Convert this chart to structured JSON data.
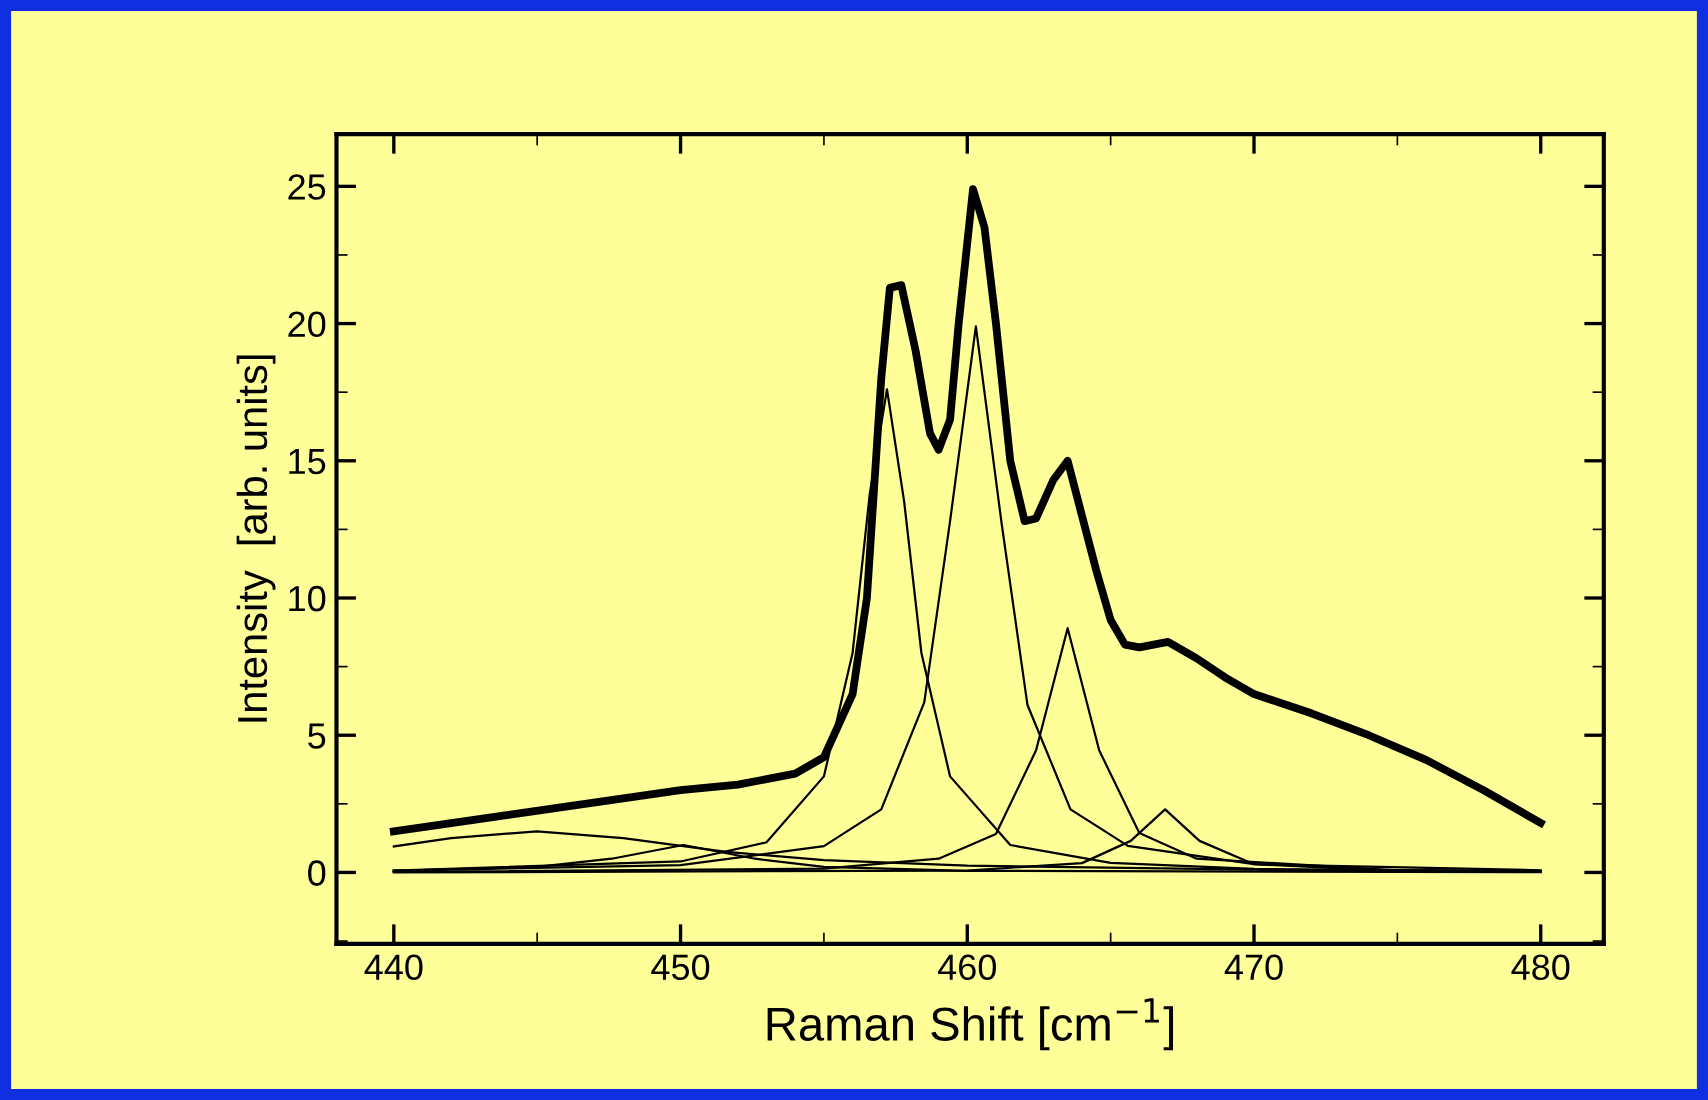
{
  "chart_data": {
    "type": "line",
    "xlabel": "Raman Shift [cm$^{−1}$]",
    "ylabel": "Intensity  [arb. units]",
    "xlim": [
      438,
      482.2
    ],
    "ylim": [
      -2.6,
      26.9
    ],
    "xticks": [
      440,
      450,
      460,
      470,
      480
    ],
    "yticks": [
      0,
      5,
      10,
      15,
      20,
      25
    ],
    "grid": false,
    "legend": false,
    "marker": "none",
    "line_style": "solid",
    "series": [
      {
        "color": "#000000",
        "x": [
          440,
          442,
          444,
          446,
          448,
          450,
          452,
          454,
          455,
          456,
          456.5,
          457,
          457.3,
          457.7,
          458.2,
          458.7,
          459,
          459.4,
          459.7,
          460.2,
          460.6,
          461,
          461.5,
          462,
          462.4,
          463,
          463.5,
          464,
          464.5,
          465,
          465.5,
          466,
          467,
          468,
          469,
          470,
          472,
          474,
          476,
          478,
          480
        ],
        "values": [
          1.5,
          1.8,
          2.1,
          2.4,
          2.7,
          3.0,
          3.2,
          3.6,
          4.2,
          6.5,
          10,
          18,
          21.3,
          21.4,
          19,
          16,
          15.4,
          16.5,
          20,
          24.9,
          23.5,
          20,
          15,
          12.8,
          12.9,
          14.3,
          15,
          13,
          11,
          9.2,
          8.3,
          8.2,
          8.4,
          7.8,
          7.1,
          6.5,
          5.8,
          5.0,
          4.1,
          3.0,
          1.8
        ]
      },
      {
        "color": "#000000",
        "x": [
          440,
          450,
          453,
          455,
          456,
          456.6,
          457.2,
          457.8,
          458.4,
          459.4,
          461.5,
          465,
          470,
          480
        ],
        "values": [
          0.07,
          0.4,
          1.1,
          3.5,
          8.0,
          13.8,
          17.6,
          13.5,
          8.0,
          3.5,
          1.0,
          0.35,
          0.13,
          0.04
        ]
      },
      {
        "color": "#000000",
        "x": [
          440,
          450,
          455,
          457,
          458.5,
          459.4,
          460.3,
          461.2,
          462.1,
          463.6,
          465.6,
          470,
          480
        ],
        "values": [
          0.07,
          0.27,
          0.96,
          2.3,
          6.2,
          12.8,
          19.9,
          12.7,
          6.1,
          2.3,
          0.97,
          0.3,
          0.08
        ]
      },
      {
        "color": "#000000",
        "x": [
          440,
          455,
          459,
          461,
          462.4,
          463.5,
          464.6,
          466,
          468,
          475,
          480
        ],
        "values": [
          0.02,
          0.14,
          0.5,
          1.4,
          4.45,
          8.9,
          4.45,
          1.44,
          0.5,
          0.08,
          0.04
        ]
      },
      {
        "color": "#000000",
        "x": [
          440,
          460,
          464,
          465.7,
          466.9,
          468.1,
          470,
          475,
          480
        ],
        "values": [
          0.0,
          0.07,
          0.34,
          1.15,
          2.3,
          1.15,
          0.3,
          0.05,
          0.02
        ]
      },
      {
        "color": "#000000",
        "x": [
          440,
          445,
          447.6,
          450.1,
          452.6,
          455,
          460,
          480
        ],
        "values": [
          0.06,
          0.2,
          0.5,
          1.0,
          0.5,
          0.2,
          0.06,
          0.01
        ]
      },
      {
        "color": "#000000",
        "x": [
          440,
          442,
          445,
          448,
          451.6,
          455,
          460,
          470,
          480
        ],
        "values": [
          0.95,
          1.25,
          1.5,
          1.25,
          0.75,
          0.45,
          0.25,
          0.1,
          0.05
        ]
      }
    ]
  }
}
